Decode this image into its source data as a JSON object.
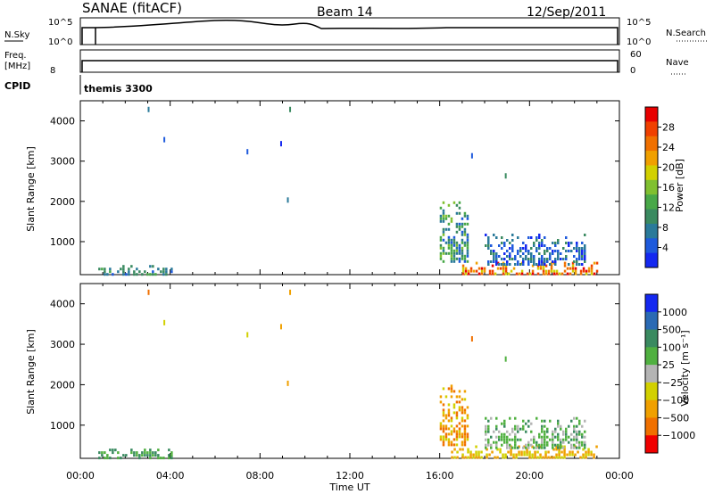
{
  "header": {
    "station": "SANAE (fitACF)",
    "beam": "Beam 14",
    "date": "12/Sep/2011"
  },
  "top_panels": {
    "nsky_label": "N.Sky",
    "nsearch_label": "N.Search",
    "nsky_ticks": [
      "10^5",
      "10^0"
    ],
    "nsearch_ticks": [
      "10^5",
      "10^0"
    ],
    "freq_label": "Freq.",
    "freq_unit": "[MHz]",
    "freq_tick": "8",
    "nave_label": "Nave",
    "nave_ticks": [
      "60",
      "0"
    ],
    "cpid_label": "CPID",
    "cpid_value": "themis 3300"
  },
  "colors": {
    "power": [
      "#1428f0",
      "#1e5adc",
      "#2a7a9a",
      "#3a8a60",
      "#48a848",
      "#80c030",
      "#d2d000",
      "#f0a000",
      "#f07000",
      "#f04000",
      "#e80000"
    ],
    "velocity": [
      "#1428f0",
      "#2a6ab4",
      "#3a8a60",
      "#50b040",
      "#b4b4b4",
      "#d2d000",
      "#f0a000",
      "#f07000",
      "#f00000"
    ]
  },
  "chart_data": [
    {
      "type": "heatmap",
      "name": "power",
      "xlabel": "",
      "ylabel": "Slant Range [km]",
      "x_ticks": [
        "00:00",
        "04:00",
        "08:00",
        "12:00",
        "16:00",
        "20:00",
        "00:00"
      ],
      "xlim": [
        0,
        24
      ],
      "ylim": [
        180,
        4500
      ],
      "y_ticks": [
        1000,
        2000,
        3000,
        4000
      ],
      "colorbar": {
        "label": "Power [dB]",
        "ticks": [
          "4",
          "8",
          "12",
          "16",
          "20",
          "24",
          "28"
        ],
        "range": [
          0,
          30
        ]
      },
      "regions": [
        {
          "t0": 0.8,
          "t1": 4.1,
          "r0": 180,
          "r1": 420,
          "levels": [
            1,
            4
          ]
        },
        {
          "t0": 17.0,
          "t1": 23.0,
          "r0": 180,
          "r1": 500,
          "levels": [
            6,
            10
          ]
        },
        {
          "t0": 16.0,
          "t1": 17.2,
          "r0": 500,
          "r1": 2000,
          "levels": [
            1,
            5
          ]
        },
        {
          "t0": 18.0,
          "t1": 22.5,
          "r0": 420,
          "r1": 1200,
          "levels": [
            0,
            3
          ]
        }
      ],
      "points": [
        {
          "t": 8.9,
          "r": 3500,
          "level": 0
        },
        {
          "t": 9.3,
          "r": 4350,
          "level": 3
        },
        {
          "t": 3.0,
          "r": 4350,
          "level": 2
        },
        {
          "t": 3.7,
          "r": 3600,
          "level": 1
        },
        {
          "t": 17.4,
          "r": 3200,
          "level": 1
        },
        {
          "t": 18.9,
          "r": 2700,
          "level": 3
        },
        {
          "t": 7.4,
          "r": 3300,
          "level": 1
        },
        {
          "t": 9.2,
          "r": 2100,
          "level": 2
        }
      ]
    },
    {
      "type": "heatmap",
      "name": "velocity",
      "xlabel": "Time UT",
      "ylabel": "Slant Range [km]",
      "x_ticks": [
        "00:00",
        "04:00",
        "08:00",
        "12:00",
        "16:00",
        "20:00",
        "00:00"
      ],
      "xlim": [
        0,
        24
      ],
      "ylim": [
        180,
        4500
      ],
      "y_ticks": [
        1000,
        2000,
        3000,
        4000
      ],
      "colorbar": {
        "label": "Velocity [m s⁻¹]",
        "ticks": [
          "1000",
          "500",
          "100",
          "25",
          "−25",
          "−100",
          "−500",
          "−1000"
        ],
        "range": [
          0,
          9
        ]
      },
      "regions": [
        {
          "t0": 0.8,
          "t1": 4.1,
          "r0": 180,
          "r1": 420,
          "levels": [
            2,
            3
          ]
        },
        {
          "t0": 16.5,
          "t1": 23.0,
          "r0": 180,
          "r1": 500,
          "levels": [
            5,
            6
          ]
        },
        {
          "t0": 16.0,
          "t1": 17.2,
          "r0": 500,
          "r1": 2000,
          "levels": [
            5,
            7
          ]
        },
        {
          "t0": 18.0,
          "t1": 22.5,
          "r0": 420,
          "r1": 1200,
          "levels": [
            2,
            4
          ]
        }
      ],
      "points": [
        {
          "t": 8.9,
          "r": 3500,
          "level": 6
        },
        {
          "t": 9.3,
          "r": 4350,
          "level": 6
        },
        {
          "t": 3.0,
          "r": 4350,
          "level": 7
        },
        {
          "t": 3.7,
          "r": 3600,
          "level": 5
        },
        {
          "t": 17.4,
          "r": 3200,
          "level": 7
        },
        {
          "t": 18.9,
          "r": 2700,
          "level": 3
        },
        {
          "t": 7.4,
          "r": 3300,
          "level": 5
        },
        {
          "t": 9.2,
          "r": 2100,
          "level": 6
        }
      ]
    }
  ]
}
